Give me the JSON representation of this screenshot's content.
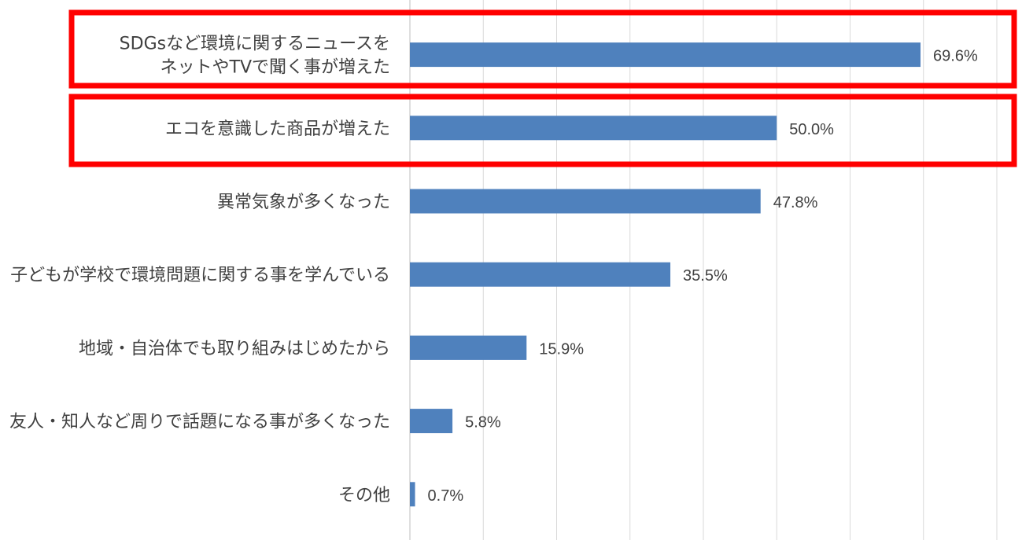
{
  "colors": {
    "bar": "#4f81bd",
    "highlight": "#ff0000",
    "grid": "#d9d9d9",
    "text": "#404040"
  },
  "chart_data": {
    "type": "bar",
    "orientation": "horizontal",
    "categories": [
      [
        "SDGsなど環境に関するニュースを",
        "ネットやTVで聞く事が増えた"
      ],
      [
        "エコを意識した商品が増えた"
      ],
      [
        "異常気象が多くなった"
      ],
      [
        "子どもが学校で環境問題に関する事を学んでいる"
      ],
      [
        "地域・自治体でも取り組みはじめたから"
      ],
      [
        "友人・知人など周りで話題になる事が多くなった"
      ],
      [
        "その他"
      ]
    ],
    "values": [
      69.6,
      50.0,
      47.8,
      35.5,
      15.9,
      5.8,
      0.7
    ],
    "value_labels": [
      "69.6%",
      "50.0%",
      "47.8%",
      "35.5%",
      "15.9%",
      "5.8%",
      "0.7%"
    ],
    "xlim": [
      0,
      80
    ],
    "grid": true,
    "highlighted_categories": [
      0,
      1
    ]
  }
}
